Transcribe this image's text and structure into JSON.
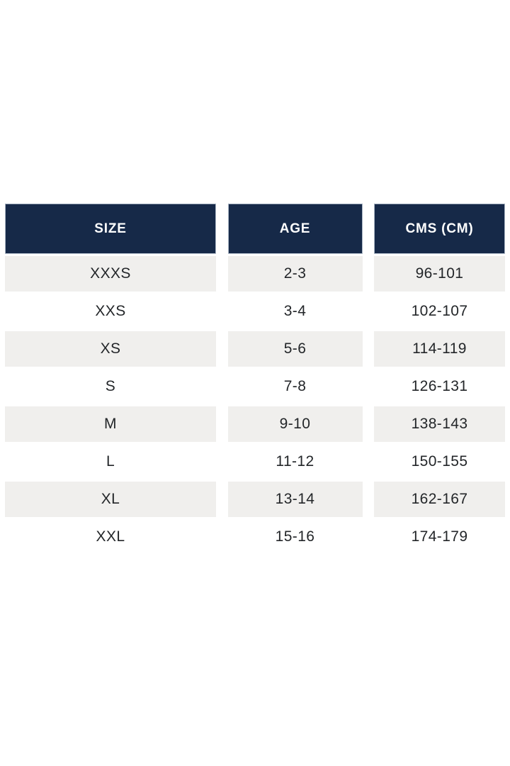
{
  "chart_data": {
    "type": "table",
    "title": "",
    "columns": [
      "SIZE",
      "AGE",
      "CMS (CM)"
    ],
    "rows": [
      {
        "size": "XXXS",
        "age": "2-3",
        "cms": "96-101"
      },
      {
        "size": "XXS",
        "age": "3-4",
        "cms": "102-107"
      },
      {
        "size": "XS",
        "age": "5-6",
        "cms": "114-119"
      },
      {
        "size": "S",
        "age": "7-8",
        "cms": "126-131"
      },
      {
        "size": "M",
        "age": "9-10",
        "cms": "138-143"
      },
      {
        "size": "L",
        "age": "11-12",
        "cms": "150-155"
      },
      {
        "size": "XL",
        "age": "13-14",
        "cms": "162-167"
      },
      {
        "size": "XXL",
        "age": "15-16",
        "cms": "174-179"
      }
    ]
  },
  "table": {
    "headers": {
      "size": "SIZE",
      "age": "AGE",
      "cms": "CMS (CM)"
    }
  },
  "colors": {
    "header_bg": "#162948",
    "header_text": "#ffffff",
    "row_alt_bg": "#f0efed",
    "row_bg": "#ffffff",
    "cell_text": "#232629",
    "page_bg": "#ffffff"
  }
}
